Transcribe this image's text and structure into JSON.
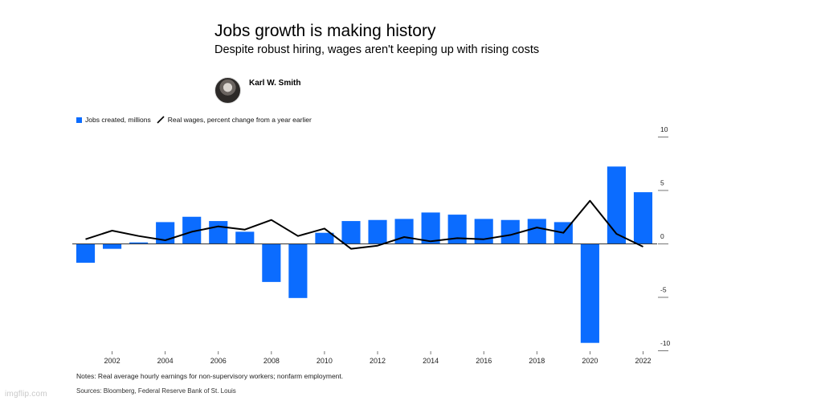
{
  "header": {
    "title": "Jobs growth is making history",
    "subtitle": "Despite robust hiring, wages aren't keeping up with rising costs",
    "author": "Karl W. Smith"
  },
  "legend": {
    "bars_label": "Jobs created, millions",
    "line_label": "Real wages, percent change from a year earlier"
  },
  "colors": {
    "bar": "#0b6cff",
    "line": "#000000",
    "axis": "#333333"
  },
  "footer": {
    "notes": "Notes: Real average hourly earnings for non-supervisory workers; nonfarm employment.",
    "sources": "Sources: Bloomberg, Federal Reserve Bank of St. Louis"
  },
  "watermark": "imgflip.com",
  "chart_data": {
    "type": "bar",
    "title": "Jobs growth is making history",
    "ylim": [
      -10,
      10
    ],
    "y_ticks": [
      10,
      5,
      0,
      -5,
      -10
    ],
    "x_tick_labels": [
      "2002",
      "2004",
      "2006",
      "2008",
      "2010",
      "2012",
      "2014",
      "2016",
      "2018",
      "2020",
      "2022"
    ],
    "y_axis_position": "right",
    "grid": false,
    "legend_position": "top-left",
    "categories": [
      "2001",
      "2002",
      "2003",
      "2004",
      "2005",
      "2006",
      "2007",
      "2008",
      "2009",
      "2010",
      "2011",
      "2012",
      "2013",
      "2014",
      "2015",
      "2016",
      "2017",
      "2018",
      "2019",
      "2020",
      "2021",
      "2022"
    ],
    "series": [
      {
        "name": "Jobs created, millions",
        "type": "bar",
        "values": [
          -1.8,
          -0.5,
          0.1,
          2.0,
          2.5,
          2.1,
          1.1,
          -3.6,
          -5.1,
          1.0,
          2.1,
          2.2,
          2.3,
          2.9,
          2.7,
          2.3,
          2.2,
          2.3,
          2.0,
          -9.3,
          7.2,
          4.8
        ]
      },
      {
        "name": "Real wages, percent change from a year earlier",
        "type": "line",
        "values": [
          0.4,
          1.2,
          0.7,
          0.3,
          1.1,
          1.6,
          1.3,
          2.2,
          0.7,
          1.4,
          -0.5,
          -0.2,
          0.6,
          0.2,
          0.5,
          0.4,
          0.8,
          1.5,
          1.0,
          4.0,
          0.9,
          -0.3
        ]
      }
    ]
  }
}
